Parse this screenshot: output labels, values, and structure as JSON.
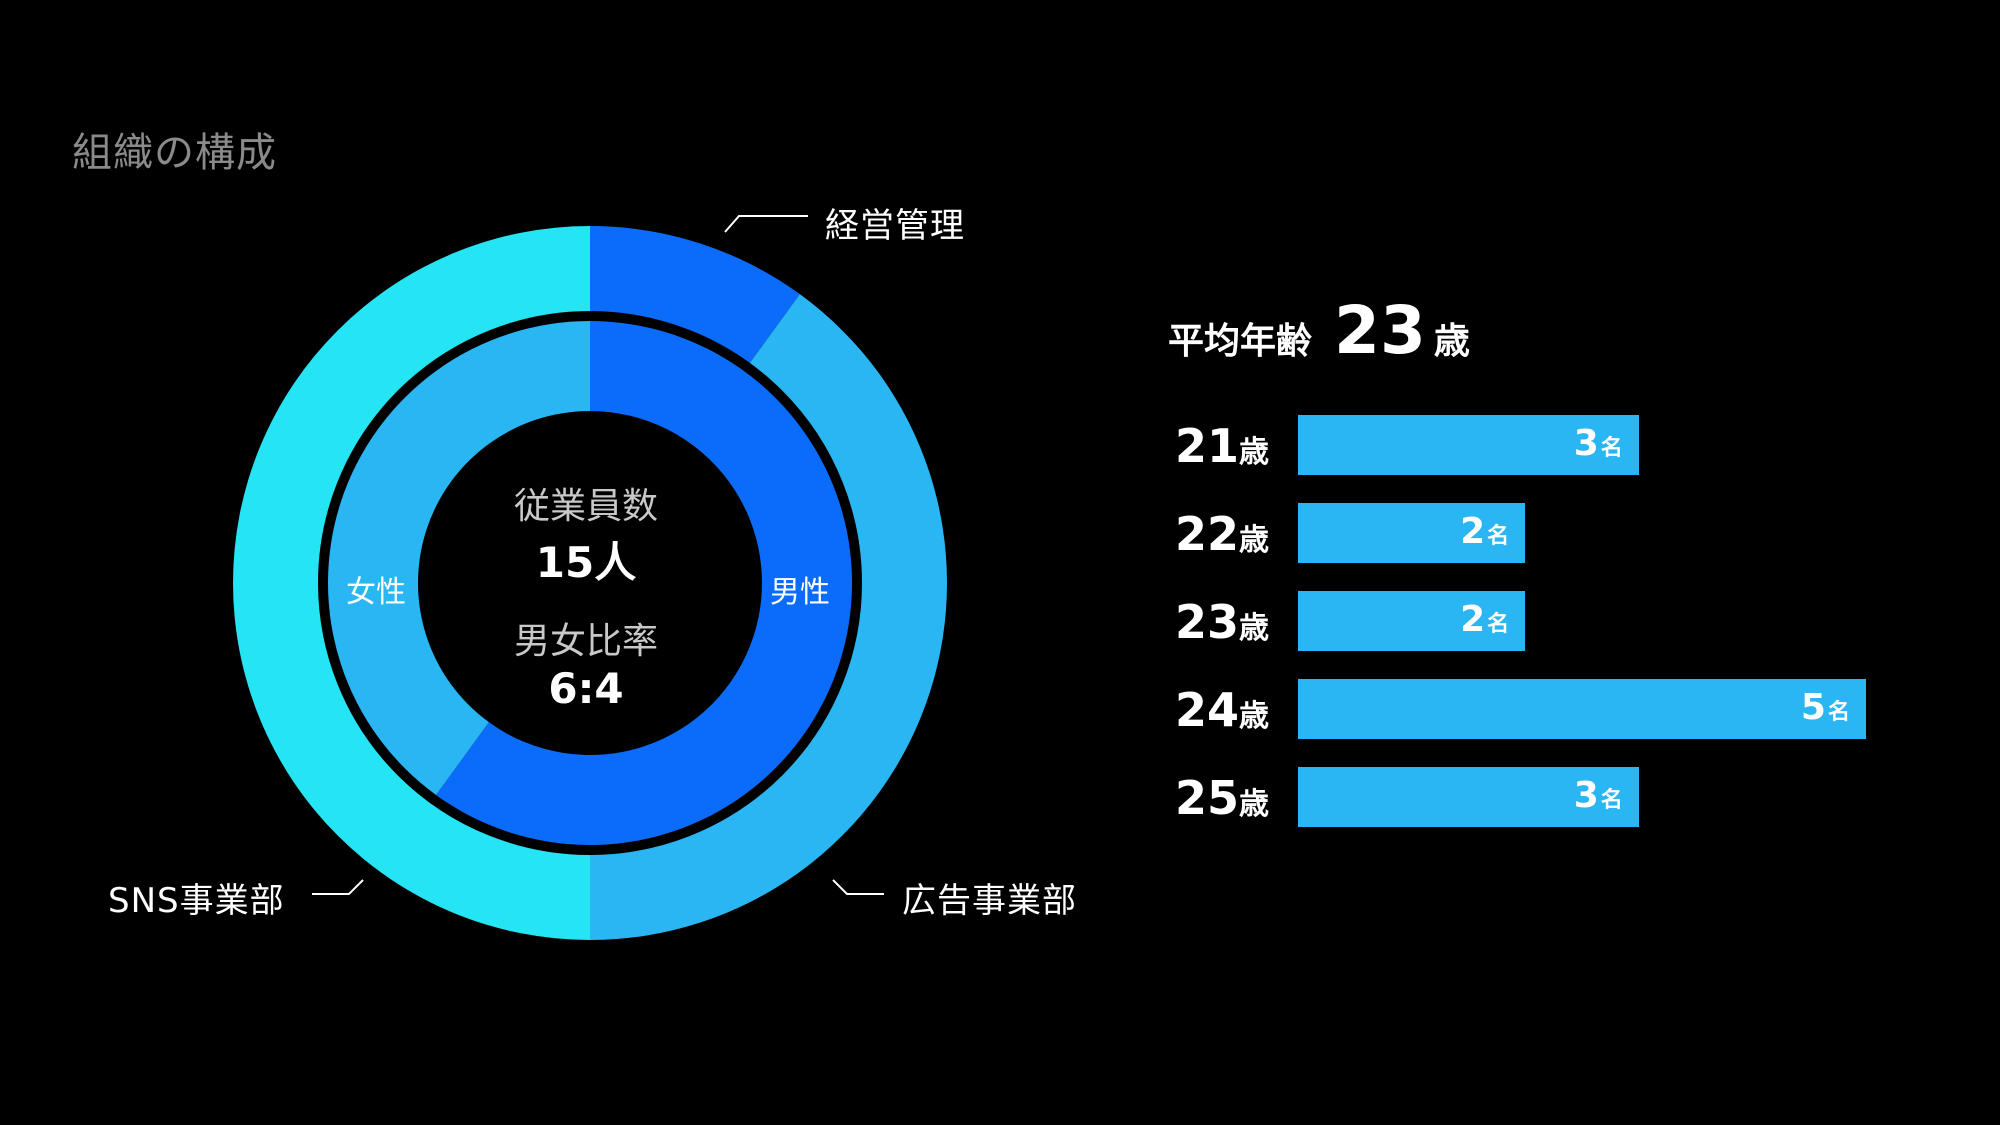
{
  "page": {
    "title": "組織の構成"
  },
  "colors": {
    "background": "#000000",
    "department_sns": "#25e5f4",
    "department_management": "#0b6cfb",
    "department_ad": "#29b6f2",
    "gender_male": "#0b6cfb",
    "gender_female": "#29b6f2",
    "bar": "#29b6f2",
    "muted_text": "#8a8a8a"
  },
  "center": {
    "employees_label": "従業員数",
    "employees_value": "15人",
    "ratio_label": "男女比率",
    "ratio_value": "6:4"
  },
  "chart_data": [
    {
      "type": "pie",
      "variant": "donut-outer",
      "categories": [
        "経営管理",
        "広告事業部",
        "SNS事業部"
      ],
      "values": [
        10,
        40,
        50
      ],
      "unit": "percent (estimated)",
      "colors": [
        "#0b6cfb",
        "#29b6f2",
        "#25e5f4"
      ]
    },
    {
      "type": "pie",
      "variant": "donut-inner",
      "categories": [
        "男性",
        "女性"
      ],
      "values": [
        60,
        40
      ],
      "unit": "percent",
      "colors": [
        "#0b6cfb",
        "#29b6f2"
      ]
    },
    {
      "type": "bar",
      "orientation": "horizontal",
      "title_label": "平均年齢",
      "title_value": "23",
      "title_unit": "歳",
      "age_unit": "歳",
      "count_unit": "名",
      "categories": [
        "21",
        "22",
        "23",
        "24",
        "25"
      ],
      "values": [
        3,
        2,
        2,
        5,
        3
      ],
      "xlim": [
        0,
        5
      ]
    }
  ]
}
